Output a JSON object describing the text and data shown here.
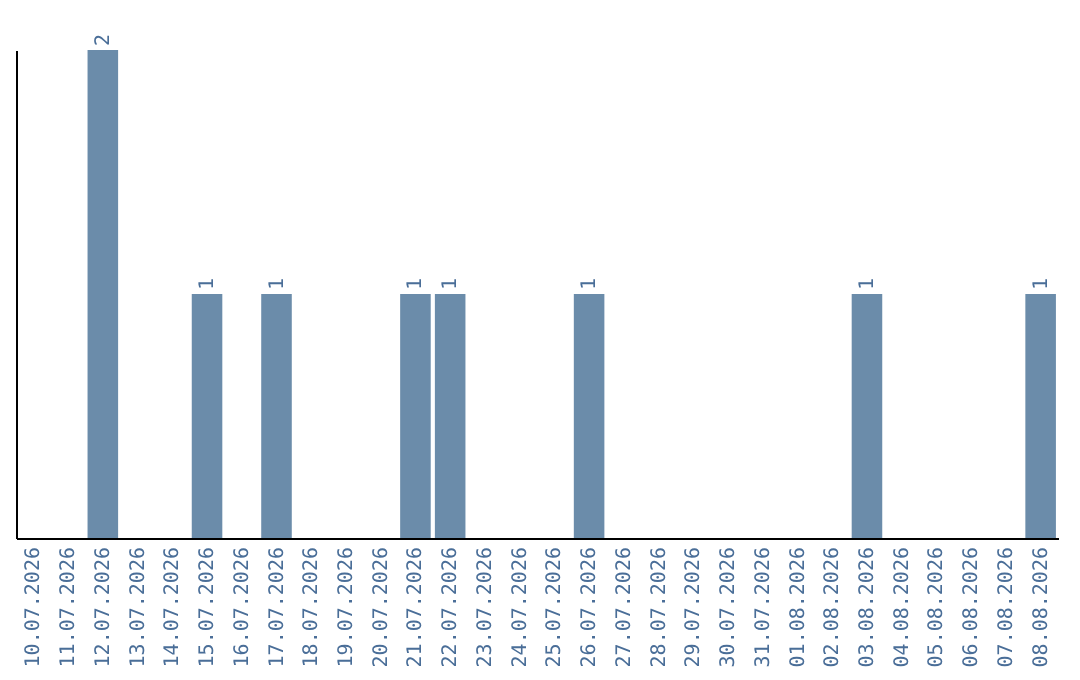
{
  "chart_data": {
    "type": "bar",
    "categories": [
      "10.07.2026",
      "11.07.2026",
      "12.07.2026",
      "13.07.2026",
      "14.07.2026",
      "15.07.2026",
      "16.07.2026",
      "17.07.2026",
      "18.07.2026",
      "19.07.2026",
      "20.07.2026",
      "21.07.2026",
      "22.07.2026",
      "23.07.2026",
      "24.07.2026",
      "25.07.2026",
      "26.07.2026",
      "27.07.2026",
      "28.07.2026",
      "29.07.2026",
      "30.07.2026",
      "31.07.2026",
      "01.08.2026",
      "02.08.2026",
      "03.08.2026",
      "04.08.2026",
      "05.08.2026",
      "06.08.2026",
      "07.08.2026",
      "08.08.2026"
    ],
    "values": [
      0,
      0,
      2,
      0,
      0,
      1,
      0,
      1,
      0,
      0,
      0,
      1,
      1,
      0,
      0,
      0,
      1,
      0,
      0,
      0,
      0,
      0,
      0,
      0,
      1,
      0,
      0,
      0,
      0,
      1
    ],
    "value_labels": [
      null,
      null,
      "2",
      null,
      null,
      "1",
      null,
      "1",
      null,
      null,
      null,
      "1",
      "1",
      null,
      null,
      null,
      "1",
      null,
      null,
      null,
      null,
      null,
      null,
      null,
      "1",
      null,
      null,
      null,
      null,
      "1"
    ],
    "color": "#6b8caa",
    "tick_labels": "x",
    "grid": false
  }
}
